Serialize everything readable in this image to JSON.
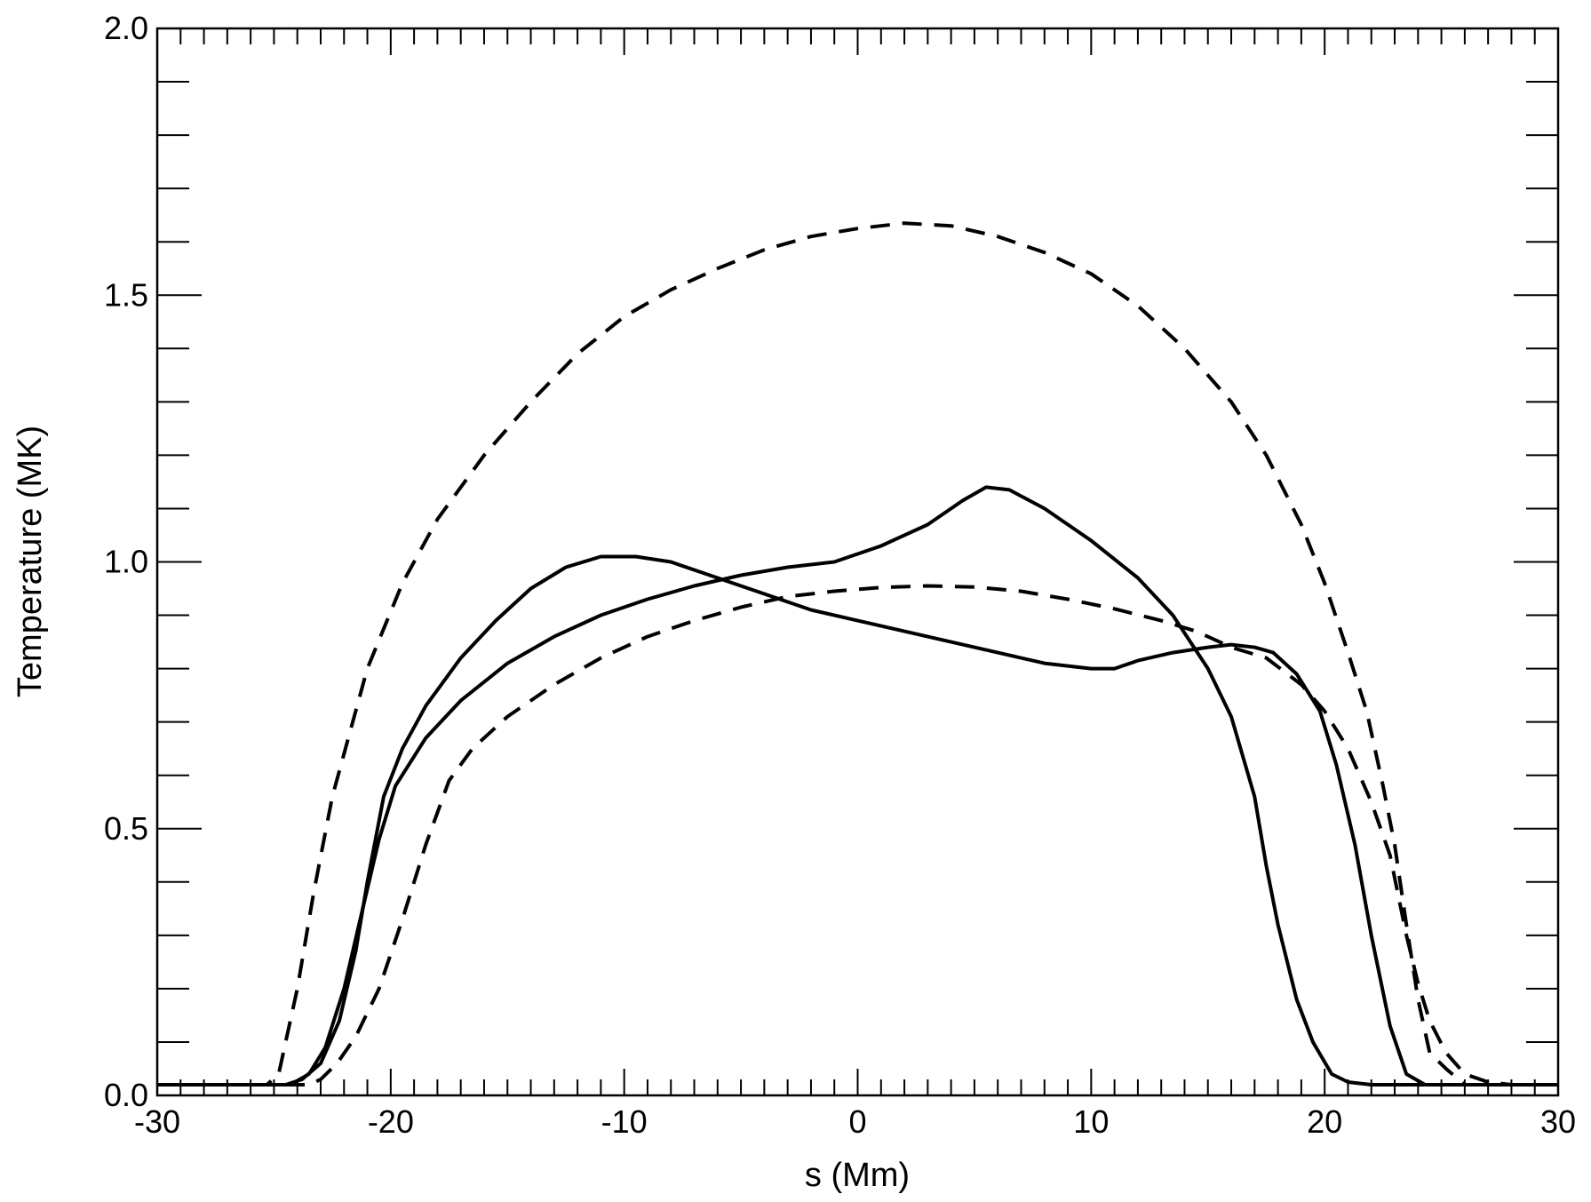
{
  "chart_data": {
    "type": "line",
    "title": "",
    "xlabel": "s (Mm)",
    "ylabel": "Temperature (MK)",
    "xlim": [
      -30,
      30
    ],
    "ylim": [
      0.0,
      2.0
    ],
    "x_ticks": [
      "-30",
      "-20",
      "-10",
      "0",
      "10",
      "20",
      "30"
    ],
    "y_ticks": [
      "0.0",
      "0.5",
      "1.0",
      "1.5",
      "2.0"
    ],
    "grid": false,
    "series": [
      {
        "style": "solid",
        "points": [
          [
            -30,
            0.02
          ],
          [
            -24.5,
            0.02
          ],
          [
            -23.8,
            0.03
          ],
          [
            -23,
            0.06
          ],
          [
            -22.2,
            0.14
          ],
          [
            -21.5,
            0.27
          ],
          [
            -21,
            0.4
          ],
          [
            -20.3,
            0.56
          ],
          [
            -19.5,
            0.65
          ],
          [
            -18.5,
            0.73
          ],
          [
            -17,
            0.82
          ],
          [
            -15.5,
            0.89
          ],
          [
            -14,
            0.95
          ],
          [
            -12.5,
            0.99
          ],
          [
            -11,
            1.01
          ],
          [
            -9.5,
            1.01
          ],
          [
            -8,
            1.0
          ],
          [
            -6,
            0.97
          ],
          [
            -4,
            0.94
          ],
          [
            -2,
            0.91
          ],
          [
            0,
            0.89
          ],
          [
            2,
            0.87
          ],
          [
            4,
            0.85
          ],
          [
            6,
            0.83
          ],
          [
            8,
            0.81
          ],
          [
            10,
            0.8
          ],
          [
            11,
            0.8
          ],
          [
            12,
            0.815
          ],
          [
            13.5,
            0.83
          ],
          [
            15,
            0.84
          ],
          [
            16,
            0.845
          ],
          [
            17,
            0.84
          ],
          [
            17.8,
            0.83
          ],
          [
            18.8,
            0.79
          ],
          [
            19.8,
            0.72
          ],
          [
            20.5,
            0.62
          ],
          [
            21.3,
            0.47
          ],
          [
            22,
            0.3
          ],
          [
            22.8,
            0.13
          ],
          [
            23.5,
            0.04
          ],
          [
            24.3,
            0.02
          ],
          [
            30,
            0.02
          ]
        ]
      },
      {
        "style": "solid",
        "points": [
          [
            -30,
            0.02
          ],
          [
            -24.3,
            0.02
          ],
          [
            -23.5,
            0.04
          ],
          [
            -22.8,
            0.09
          ],
          [
            -22,
            0.2
          ],
          [
            -21.2,
            0.35
          ],
          [
            -20.5,
            0.48
          ],
          [
            -19.8,
            0.58
          ],
          [
            -18.5,
            0.67
          ],
          [
            -17,
            0.74
          ],
          [
            -15,
            0.81
          ],
          [
            -13,
            0.86
          ],
          [
            -11,
            0.9
          ],
          [
            -9,
            0.93
          ],
          [
            -7,
            0.955
          ],
          [
            -5,
            0.975
          ],
          [
            -3,
            0.99
          ],
          [
            -1,
            1.0
          ],
          [
            1,
            1.03
          ],
          [
            3,
            1.07
          ],
          [
            4.5,
            1.115
          ],
          [
            5.5,
            1.14
          ],
          [
            6.5,
            1.135
          ],
          [
            8,
            1.1
          ],
          [
            10,
            1.04
          ],
          [
            12,
            0.97
          ],
          [
            13.5,
            0.9
          ],
          [
            15,
            0.8
          ],
          [
            16,
            0.71
          ],
          [
            17,
            0.56
          ],
          [
            17.5,
            0.43
          ],
          [
            18,
            0.32
          ],
          [
            18.8,
            0.18
          ],
          [
            19.5,
            0.1
          ],
          [
            20.3,
            0.04
          ],
          [
            21,
            0.025
          ],
          [
            22,
            0.02
          ],
          [
            30,
            0.02
          ]
        ]
      },
      {
        "style": "dashed",
        "points": [
          [
            -30,
            0.02
          ],
          [
            -25.3,
            0.02
          ],
          [
            -24.8,
            0.04
          ],
          [
            -24,
            0.2
          ],
          [
            -23.3,
            0.38
          ],
          [
            -22.5,
            0.56
          ],
          [
            -21,
            0.8
          ],
          [
            -19.5,
            0.96
          ],
          [
            -18,
            1.08
          ],
          [
            -16,
            1.2
          ],
          [
            -14,
            1.3
          ],
          [
            -12,
            1.39
          ],
          [
            -10,
            1.46
          ],
          [
            -8,
            1.51
          ],
          [
            -6,
            1.55
          ],
          [
            -4,
            1.585
          ],
          [
            -2,
            1.61
          ],
          [
            0,
            1.625
          ],
          [
            2,
            1.635
          ],
          [
            4,
            1.63
          ],
          [
            6,
            1.61
          ],
          [
            8,
            1.58
          ],
          [
            10,
            1.54
          ],
          [
            12,
            1.48
          ],
          [
            14,
            1.4
          ],
          [
            16,
            1.3
          ],
          [
            17.5,
            1.2
          ],
          [
            19,
            1.07
          ],
          [
            20,
            0.96
          ],
          [
            21,
            0.83
          ],
          [
            21.8,
            0.72
          ],
          [
            22.5,
            0.58
          ],
          [
            23,
            0.47
          ],
          [
            23.5,
            0.32
          ],
          [
            24,
            0.18
          ],
          [
            24.5,
            0.08
          ],
          [
            25.2,
            0.05
          ],
          [
            26,
            0.02
          ],
          [
            30,
            0.02
          ]
        ]
      },
      {
        "style": "dashed",
        "points": [
          [
            -30,
            0.02
          ],
          [
            -23.5,
            0.02
          ],
          [
            -23,
            0.03
          ],
          [
            -22.3,
            0.06
          ],
          [
            -21.5,
            0.11
          ],
          [
            -20.5,
            0.2
          ],
          [
            -19.5,
            0.33
          ],
          [
            -18.5,
            0.47
          ],
          [
            -17.5,
            0.59
          ],
          [
            -16.5,
            0.65
          ],
          [
            -15,
            0.71
          ],
          [
            -13,
            0.77
          ],
          [
            -11,
            0.82
          ],
          [
            -9,
            0.86
          ],
          [
            -7,
            0.89
          ],
          [
            -5,
            0.915
          ],
          [
            -3,
            0.935
          ],
          [
            -1,
            0.945
          ],
          [
            1,
            0.952
          ],
          [
            3,
            0.955
          ],
          [
            5,
            0.953
          ],
          [
            7,
            0.945
          ],
          [
            9,
            0.93
          ],
          [
            11,
            0.912
          ],
          [
            13,
            0.89
          ],
          [
            14.5,
            0.87
          ],
          [
            16,
            0.84
          ],
          [
            17.5,
            0.82
          ],
          [
            19,
            0.77
          ],
          [
            20,
            0.72
          ],
          [
            21,
            0.65
          ],
          [
            22,
            0.55
          ],
          [
            22.8,
            0.45
          ],
          [
            23.5,
            0.3
          ],
          [
            24,
            0.21
          ],
          [
            24.5,
            0.14
          ],
          [
            25.2,
            0.08
          ],
          [
            26,
            0.04
          ],
          [
            27,
            0.025
          ],
          [
            28,
            0.02
          ],
          [
            30,
            0.02
          ]
        ]
      }
    ]
  }
}
